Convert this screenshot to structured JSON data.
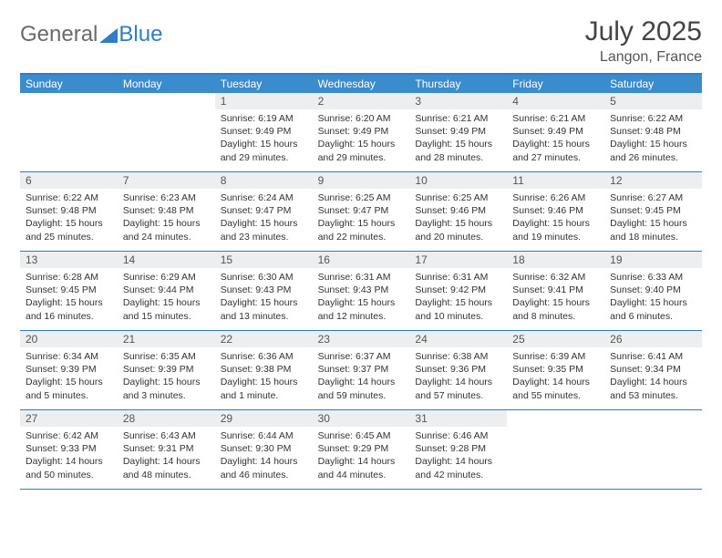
{
  "brand": {
    "part1": "General",
    "part2": "Blue"
  },
  "title": "July 2025",
  "location": "Langon, France",
  "colors": {
    "header_bg": "#3b8ccc",
    "border": "#2f7ec2",
    "daynum_bg": "#eceeef",
    "text": "#333333",
    "title_text": "#444444"
  },
  "weekdays": [
    "Sunday",
    "Monday",
    "Tuesday",
    "Wednesday",
    "Thursday",
    "Friday",
    "Saturday"
  ],
  "weeks": [
    [
      {
        "n": "",
        "sr": "",
        "ss": "",
        "dl": ""
      },
      {
        "n": "",
        "sr": "",
        "ss": "",
        "dl": ""
      },
      {
        "n": "1",
        "sr": "Sunrise: 6:19 AM",
        "ss": "Sunset: 9:49 PM",
        "dl": "Daylight: 15 hours and 29 minutes."
      },
      {
        "n": "2",
        "sr": "Sunrise: 6:20 AM",
        "ss": "Sunset: 9:49 PM",
        "dl": "Daylight: 15 hours and 29 minutes."
      },
      {
        "n": "3",
        "sr": "Sunrise: 6:21 AM",
        "ss": "Sunset: 9:49 PM",
        "dl": "Daylight: 15 hours and 28 minutes."
      },
      {
        "n": "4",
        "sr": "Sunrise: 6:21 AM",
        "ss": "Sunset: 9:49 PM",
        "dl": "Daylight: 15 hours and 27 minutes."
      },
      {
        "n": "5",
        "sr": "Sunrise: 6:22 AM",
        "ss": "Sunset: 9:48 PM",
        "dl": "Daylight: 15 hours and 26 minutes."
      }
    ],
    [
      {
        "n": "6",
        "sr": "Sunrise: 6:22 AM",
        "ss": "Sunset: 9:48 PM",
        "dl": "Daylight: 15 hours and 25 minutes."
      },
      {
        "n": "7",
        "sr": "Sunrise: 6:23 AM",
        "ss": "Sunset: 9:48 PM",
        "dl": "Daylight: 15 hours and 24 minutes."
      },
      {
        "n": "8",
        "sr": "Sunrise: 6:24 AM",
        "ss": "Sunset: 9:47 PM",
        "dl": "Daylight: 15 hours and 23 minutes."
      },
      {
        "n": "9",
        "sr": "Sunrise: 6:25 AM",
        "ss": "Sunset: 9:47 PM",
        "dl": "Daylight: 15 hours and 22 minutes."
      },
      {
        "n": "10",
        "sr": "Sunrise: 6:25 AM",
        "ss": "Sunset: 9:46 PM",
        "dl": "Daylight: 15 hours and 20 minutes."
      },
      {
        "n": "11",
        "sr": "Sunrise: 6:26 AM",
        "ss": "Sunset: 9:46 PM",
        "dl": "Daylight: 15 hours and 19 minutes."
      },
      {
        "n": "12",
        "sr": "Sunrise: 6:27 AM",
        "ss": "Sunset: 9:45 PM",
        "dl": "Daylight: 15 hours and 18 minutes."
      }
    ],
    [
      {
        "n": "13",
        "sr": "Sunrise: 6:28 AM",
        "ss": "Sunset: 9:45 PM",
        "dl": "Daylight: 15 hours and 16 minutes."
      },
      {
        "n": "14",
        "sr": "Sunrise: 6:29 AM",
        "ss": "Sunset: 9:44 PM",
        "dl": "Daylight: 15 hours and 15 minutes."
      },
      {
        "n": "15",
        "sr": "Sunrise: 6:30 AM",
        "ss": "Sunset: 9:43 PM",
        "dl": "Daylight: 15 hours and 13 minutes."
      },
      {
        "n": "16",
        "sr": "Sunrise: 6:31 AM",
        "ss": "Sunset: 9:43 PM",
        "dl": "Daylight: 15 hours and 12 minutes."
      },
      {
        "n": "17",
        "sr": "Sunrise: 6:31 AM",
        "ss": "Sunset: 9:42 PM",
        "dl": "Daylight: 15 hours and 10 minutes."
      },
      {
        "n": "18",
        "sr": "Sunrise: 6:32 AM",
        "ss": "Sunset: 9:41 PM",
        "dl": "Daylight: 15 hours and 8 minutes."
      },
      {
        "n": "19",
        "sr": "Sunrise: 6:33 AM",
        "ss": "Sunset: 9:40 PM",
        "dl": "Daylight: 15 hours and 6 minutes."
      }
    ],
    [
      {
        "n": "20",
        "sr": "Sunrise: 6:34 AM",
        "ss": "Sunset: 9:39 PM",
        "dl": "Daylight: 15 hours and 5 minutes."
      },
      {
        "n": "21",
        "sr": "Sunrise: 6:35 AM",
        "ss": "Sunset: 9:39 PM",
        "dl": "Daylight: 15 hours and 3 minutes."
      },
      {
        "n": "22",
        "sr": "Sunrise: 6:36 AM",
        "ss": "Sunset: 9:38 PM",
        "dl": "Daylight: 15 hours and 1 minute."
      },
      {
        "n": "23",
        "sr": "Sunrise: 6:37 AM",
        "ss": "Sunset: 9:37 PM",
        "dl": "Daylight: 14 hours and 59 minutes."
      },
      {
        "n": "24",
        "sr": "Sunrise: 6:38 AM",
        "ss": "Sunset: 9:36 PM",
        "dl": "Daylight: 14 hours and 57 minutes."
      },
      {
        "n": "25",
        "sr": "Sunrise: 6:39 AM",
        "ss": "Sunset: 9:35 PM",
        "dl": "Daylight: 14 hours and 55 minutes."
      },
      {
        "n": "26",
        "sr": "Sunrise: 6:41 AM",
        "ss": "Sunset: 9:34 PM",
        "dl": "Daylight: 14 hours and 53 minutes."
      }
    ],
    [
      {
        "n": "27",
        "sr": "Sunrise: 6:42 AM",
        "ss": "Sunset: 9:33 PM",
        "dl": "Daylight: 14 hours and 50 minutes."
      },
      {
        "n": "28",
        "sr": "Sunrise: 6:43 AM",
        "ss": "Sunset: 9:31 PM",
        "dl": "Daylight: 14 hours and 48 minutes."
      },
      {
        "n": "29",
        "sr": "Sunrise: 6:44 AM",
        "ss": "Sunset: 9:30 PM",
        "dl": "Daylight: 14 hours and 46 minutes."
      },
      {
        "n": "30",
        "sr": "Sunrise: 6:45 AM",
        "ss": "Sunset: 9:29 PM",
        "dl": "Daylight: 14 hours and 44 minutes."
      },
      {
        "n": "31",
        "sr": "Sunrise: 6:46 AM",
        "ss": "Sunset: 9:28 PM",
        "dl": "Daylight: 14 hours and 42 minutes."
      },
      {
        "n": "",
        "sr": "",
        "ss": "",
        "dl": ""
      },
      {
        "n": "",
        "sr": "",
        "ss": "",
        "dl": ""
      }
    ]
  ]
}
